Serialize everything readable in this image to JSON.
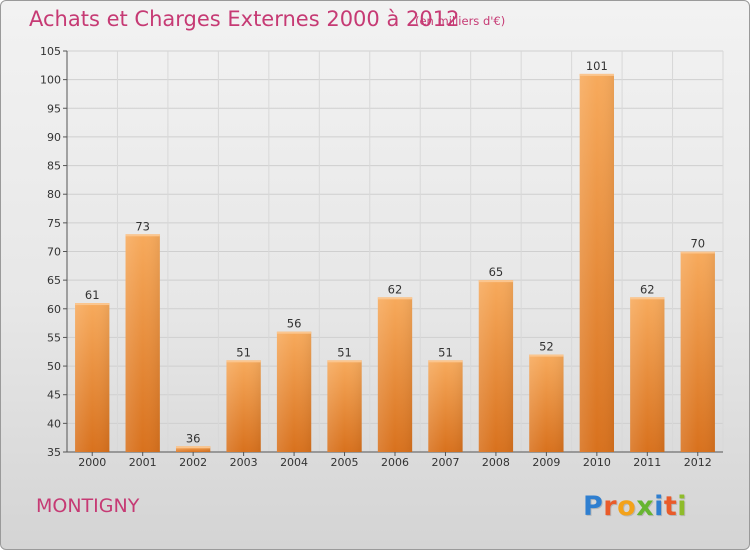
{
  "title": "Achats et Charges Externes 2000 à 2012",
  "unit": "(en milliers d'€)",
  "city": "MONTIGNY",
  "logo": {
    "letters": [
      "P",
      "r",
      "o",
      "x",
      "i",
      "t",
      "i"
    ]
  },
  "colors": {
    "title": "#c63a74",
    "bar_light": "#f5a85a",
    "bar_dark": "#d9731e",
    "grid": "#c8c8c8"
  },
  "chart_data": {
    "type": "bar",
    "title": "Achats et Charges Externes 2000 à 2012",
    "xlabel": "",
    "ylabel": "",
    "categories": [
      "2000",
      "2001",
      "2002",
      "2003",
      "2004",
      "2005",
      "2006",
      "2007",
      "2008",
      "2009",
      "2010",
      "2011",
      "2012"
    ],
    "values": [
      61,
      73,
      36,
      51,
      56,
      51,
      62,
      51,
      65,
      52,
      101,
      62,
      70
    ],
    "ylim": [
      35,
      105
    ],
    "yticks": [
      35,
      40,
      45,
      50,
      55,
      60,
      65,
      70,
      75,
      80,
      85,
      90,
      95,
      100,
      105
    ],
    "grid": true,
    "data_labels": true
  }
}
